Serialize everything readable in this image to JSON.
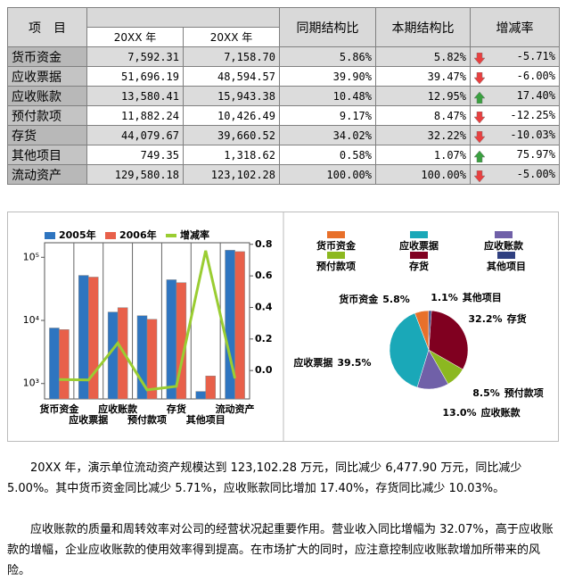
{
  "table": {
    "header": {
      "item": "项　目",
      "prev": "20XX 年",
      "curr": "20XX 年",
      "prev_ratio": "同期结构比",
      "curr_ratio": "本期结构比",
      "change": "增减率"
    },
    "rows": [
      [
        "货币资金",
        "7,592.31",
        "7,158.70",
        "5.86%",
        "5.82%",
        "-5.71%"
      ],
      [
        "应收票据",
        "51,696.19",
        "48,594.57",
        "39.90%",
        "39.47%",
        "-6.00%"
      ],
      [
        "应收账款",
        "13,580.41",
        "15,943.38",
        "10.48%",
        "12.95%",
        "17.40%"
      ],
      [
        "预付款项",
        "11,882.24",
        "10,426.49",
        "9.17%",
        "8.47%",
        "-12.25%"
      ],
      [
        "存货",
        "44,079.67",
        "39,660.52",
        "34.02%",
        "32.22%",
        "-10.03%"
      ],
      [
        "其他项目",
        "749.35",
        "1,318.62",
        "0.58%",
        "1.07%",
        "75.97%"
      ],
      [
        "流动资产",
        "129,580.18",
        "123,102.28",
        "100.00%",
        "100.00%",
        "-5.00%"
      ]
    ]
  },
  "chart_data": [
    {
      "type": "bar",
      "categories": [
        "货币资金",
        "应收票据",
        "应收账款",
        "预付款项",
        "存货",
        "其他项目",
        "流动资产"
      ],
      "series": [
        {
          "name": "2005年",
          "color": "#2e75c0",
          "values": [
            7592.31,
            51696.19,
            13580.41,
            11882.24,
            44079.67,
            749.35,
            129580.18
          ]
        },
        {
          "name": "2006年",
          "color": "#e8604a",
          "values": [
            7158.7,
            48594.57,
            15943.38,
            10426.49,
            39660.52,
            1318.62,
            123102.28
          ]
        },
        {
          "name": "增减率",
          "type": "line",
          "axis": "y2",
          "color": "#9acd32",
          "values": [
            -0.0571,
            -0.06,
            0.174,
            -0.1225,
            -0.1003,
            0.7597,
            -0.05
          ]
        }
      ],
      "log_scale": true,
      "ylim": [
        570,
        170000
      ],
      "yticks": [
        {
          "value": 1000,
          "label": "10³"
        },
        {
          "value": 10000,
          "label": "10⁴"
        },
        {
          "value": 100000,
          "label": "10⁵"
        }
      ],
      "y2lim": [
        -0.18,
        0.81
      ],
      "y2ticks": [
        {
          "value": 0,
          "label": "0.0"
        },
        0.2,
        0.4,
        0.6,
        0.8
      ]
    },
    {
      "type": "pie",
      "categories": [
        "货币资金",
        "应收票据",
        "应收账款",
        "预付款项",
        "存货",
        "其他项目"
      ],
      "values": [
        5.8,
        39.5,
        13.0,
        8.5,
        32.2,
        1.1
      ],
      "value_labels": [
        "5.8%",
        "39.5%",
        "13.0%",
        "8.5%",
        "32.2%",
        "1.1%"
      ],
      "colors": [
        "#e8702a",
        "#1aa8b8",
        "#7060a8",
        "#8cb820",
        "#800020",
        "#304080"
      ]
    }
  ],
  "paragraphs": [
    "20XX 年，演示单位流动资产规模达到 123,102.28 万元，同比减少 6,477.90 万元，同比减少 5.00%。其中货币资金同比减少 5.71%，应收账款同比增加 17.40%，存货同比减少 10.03%。",
    "应收账款的质量和周转效率对公司的经营状况起重要作用。营业收入同比增幅为 32.07%，高于应收账款的增幅，企业应收账款的使用效率得到提高。在市场扩大的同时，应注意控制应收账款增加所带来的风险。"
  ]
}
